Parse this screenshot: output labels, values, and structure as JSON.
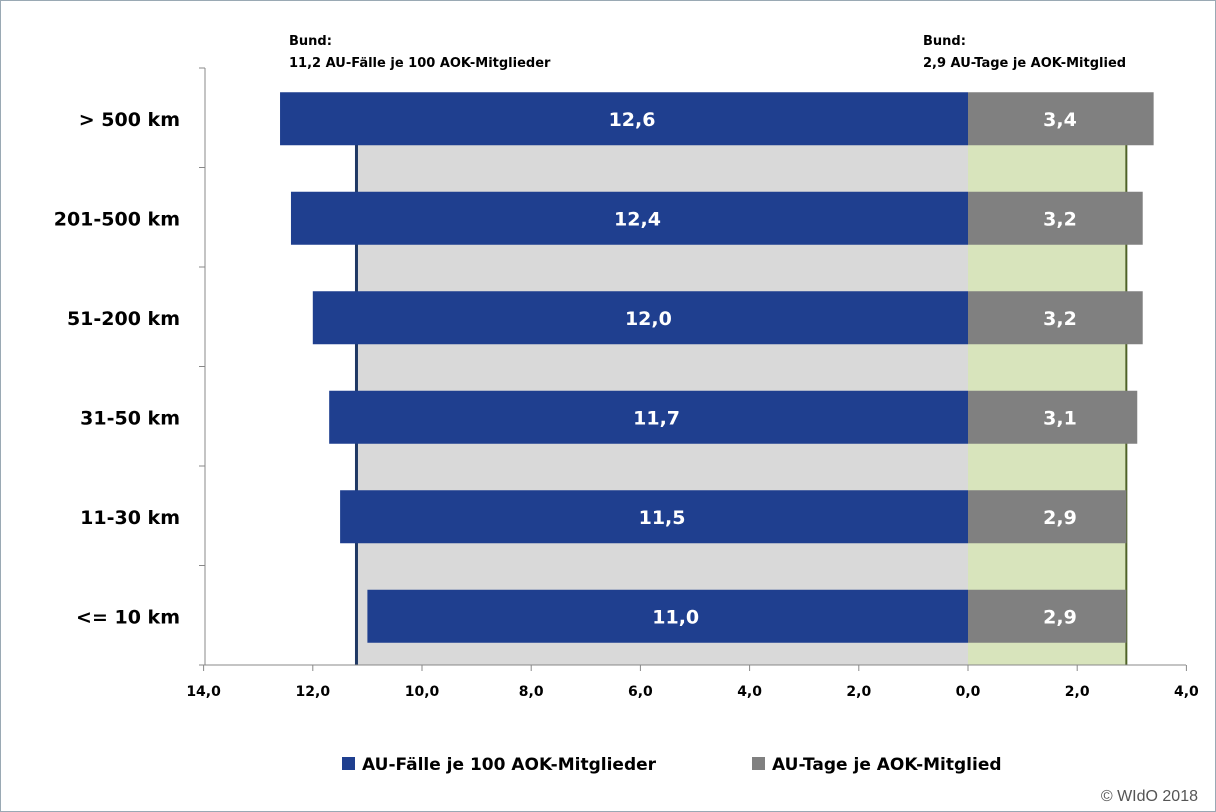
{
  "title_fragment": "",
  "copyright": "© WIdO 2018",
  "chart_data": {
    "type": "bar",
    "orientation": "horizontal",
    "categories": [
      "> 500 km",
      "201-500 km",
      "51-200 km",
      "31-50 km",
      "11-30 km",
      "<= 10 km"
    ],
    "series": [
      {
        "name": "AU-Fälle je 100 AOK-Mitglieder",
        "values": [
          12.6,
          12.4,
          12.0,
          11.7,
          11.5,
          11.0
        ],
        "color": "#1f3f8f",
        "side": "left"
      },
      {
        "name": "AU-Tage je AOK-Mitglied",
        "values": [
          3.4,
          3.2,
          3.2,
          3.1,
          2.9,
          2.9
        ],
        "color": "#808080",
        "side": "right"
      }
    ],
    "value_labels": {
      "left": [
        "12,6",
        "12,4",
        "12,0",
        "11,7",
        "11,5",
        "11,0"
      ],
      "right": [
        "3,4",
        "3,2",
        "3,2",
        "3,1",
        "2,9",
        "2,9"
      ]
    },
    "left_axis": {
      "range": [
        14,
        0
      ],
      "ticks": [
        "14,0",
        "12,0",
        "10,0",
        "8,0",
        "6,0",
        "4,0",
        "2,0",
        "0,0"
      ]
    },
    "right_axis": {
      "range": [
        0,
        4
      ],
      "ticks": [
        "2,0",
        "4,0"
      ]
    },
    "reference_lines": [
      {
        "side": "left",
        "value": 11.2,
        "label_line1": "Bund:",
        "label_line2": "11,2 AU-Fälle je 100 AOK-Mitglieder",
        "band_color": "#d9d9d9"
      },
      {
        "side": "right",
        "value": 2.9,
        "label_line1": "Bund:",
        "label_line2": "2,9 AU-Tage je AOK-Mitglied",
        "band_color": "#d8e4bc"
      }
    ],
    "legend_position": "bottom",
    "colors": {
      "left_bar": "#1f3f8f",
      "right_bar": "#808080",
      "reference_line": "#1f3864",
      "right_reference_line": "#4f6228"
    }
  }
}
